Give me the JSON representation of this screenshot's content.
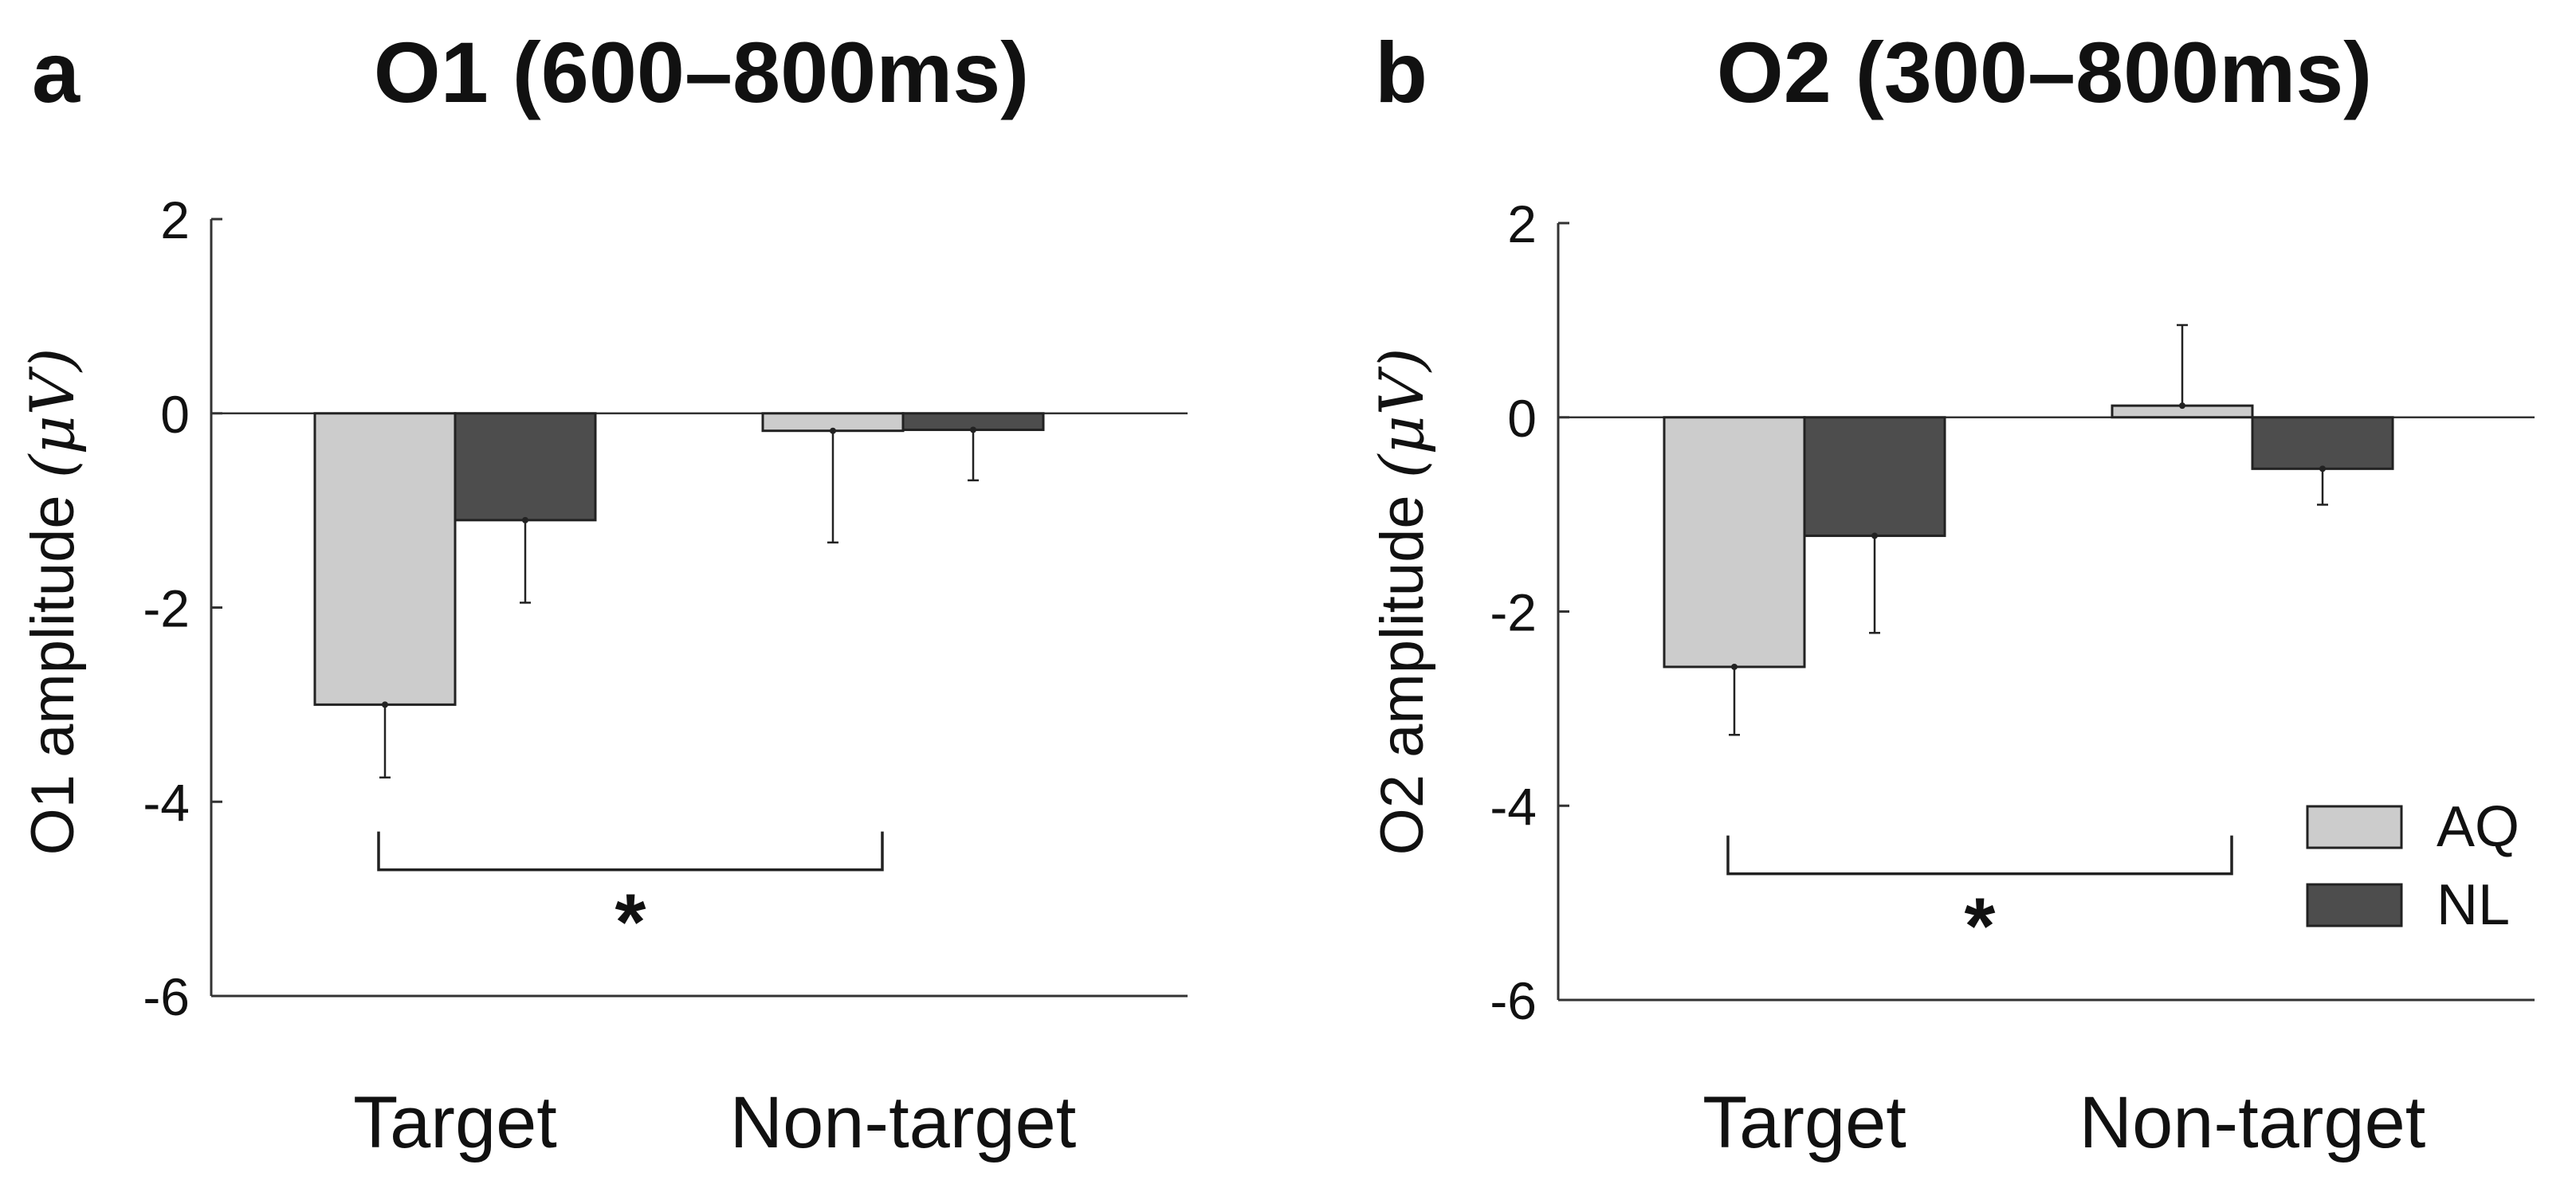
{
  "colors": {
    "aq": "#cccccc",
    "nl": "#4d4d4d",
    "axis": "#333333",
    "text": "#111111"
  },
  "legend": [
    {
      "key": "aq",
      "label": "AQ"
    },
    {
      "key": "nl",
      "label": "NL"
    }
  ],
  "chart_data": [
    {
      "type": "bar",
      "panel_label": "a",
      "title": "O1 (600–800ms)",
      "ylabel_text": "O1 amplitude",
      "ylabel_unit": "(μV)",
      "xlabel": "",
      "categories": [
        "Target",
        "Non-target"
      ],
      "ylim": [
        -6,
        2
      ],
      "yticks": [
        2,
        0,
        -2,
        -4,
        -6
      ],
      "series": [
        {
          "name": "AQ",
          "values": [
            -3.0,
            -0.18
          ],
          "errors": [
            0.75,
            1.15
          ]
        },
        {
          "name": "NL",
          "values": [
            -1.1,
            -0.17
          ],
          "errors": [
            0.85,
            0.52
          ]
        }
      ],
      "significance": {
        "label": "*",
        "between": [
          "Target",
          "Non-target"
        ],
        "y": -4.7
      },
      "legend_shown": false
    },
    {
      "type": "bar",
      "panel_label": "b",
      "title": "O2 (300–800ms)",
      "ylabel_text": "O2 amplitude",
      "ylabel_unit": "(μV)",
      "xlabel": "",
      "categories": [
        "Target",
        "Non-target"
      ],
      "ylim": [
        -6,
        2
      ],
      "yticks": [
        2,
        0,
        -2,
        -4,
        -6
      ],
      "series": [
        {
          "name": "AQ",
          "values": [
            -2.57,
            0.12
          ],
          "errors": [
            0.7,
            0.83
          ]
        },
        {
          "name": "NL",
          "values": [
            -1.22,
            -0.53
          ],
          "errors": [
            1.0,
            0.37
          ]
        }
      ],
      "significance": {
        "label": "*",
        "between": [
          "Target",
          "Non-target"
        ],
        "y": -4.7
      },
      "legend_shown": true,
      "legend_position": "bottom-right"
    }
  ]
}
